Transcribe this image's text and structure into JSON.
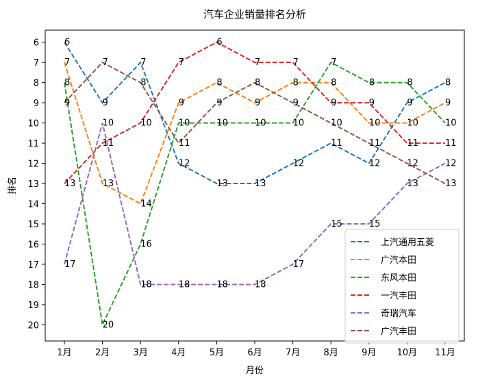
{
  "chart_data": {
    "type": "line",
    "title": "汽车企业销量排名分析",
    "xlabel": "月份",
    "ylabel": "排名",
    "categories": [
      "1月",
      "2月",
      "3月",
      "4月",
      "5月",
      "6月",
      "7月",
      "8月",
      "9月",
      "10月",
      "11月"
    ],
    "y_axis_inverted": true,
    "ylim": [
      5.4,
      20.8
    ],
    "yticks": [
      6,
      7,
      8,
      9,
      10,
      11,
      12,
      13,
      14,
      15,
      16,
      17,
      18,
      19,
      20
    ],
    "grid": false,
    "legend_position": "lower-right",
    "line_style": "dashed",
    "series": [
      {
        "name": "上汽通用五菱",
        "color": "#1f77b4",
        "values": [
          6,
          9,
          7,
          12,
          13,
          13,
          12,
          11,
          12,
          9,
          8
        ]
      },
      {
        "name": "广汽本田",
        "color": "#ff7f0e",
        "values": [
          7,
          13,
          14,
          9,
          8,
          9,
          8,
          8,
          10,
          10,
          9
        ]
      },
      {
        "name": "东风本田",
        "color": "#2ca02c",
        "values": [
          8,
          20,
          16,
          10,
          10,
          10,
          10,
          7,
          8,
          8,
          10
        ]
      },
      {
        "name": "一汽丰田",
        "color": "#d62728",
        "values": [
          13,
          11,
          10,
          7,
          6,
          7,
          7,
          9,
          9,
          11,
          11
        ]
      },
      {
        "name": "奇瑞汽车",
        "color": "#9467bd",
        "values": [
          17,
          10,
          18,
          18,
          18,
          18,
          17,
          15,
          15,
          13,
          12
        ]
      },
      {
        "name": "广汽丰田",
        "color": "#8c564b",
        "values": [
          9,
          7,
          8,
          11,
          9,
          8,
          9,
          10,
          11,
          12,
          13
        ]
      }
    ]
  }
}
